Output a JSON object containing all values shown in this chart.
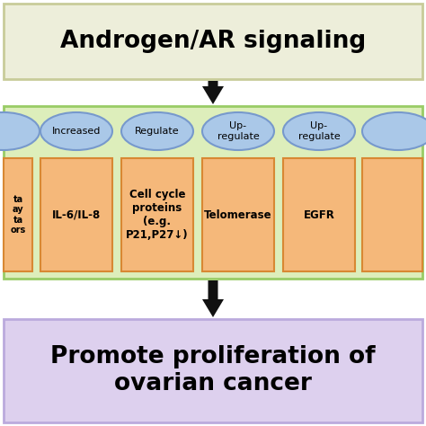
{
  "title": "Androgen/AR signaling",
  "bottom_text": "Promote proliferation of\novarian cancer",
  "title_bg": "#edeeda",
  "title_edge": "#c8cc99",
  "middle_bg": "#ddeebb",
  "middle_edge": "#99cc66",
  "bottom_bg": "#ddd0ee",
  "bottom_edge": "#bbaadd",
  "box_fill": "#f5b87a",
  "box_edge": "#d88833",
  "ellipse_fill": "#aac8e8",
  "ellipse_edge": "#7799cc",
  "arrow_color": "#111111",
  "labels_ellipse": [
    "Increased",
    "Regulate",
    "Up-\nregulate",
    "Up-\nregulate"
  ],
  "labels_box": [
    "IL-6/IL-8",
    "Cell cycle\nproteins\n(e.g.\nP21,P27↓)",
    "Telomerase",
    "EGFR"
  ],
  "partial_box_text": "ta\nay\nta\nors",
  "fig_width": 4.74,
  "fig_height": 4.74,
  "dpi": 100
}
